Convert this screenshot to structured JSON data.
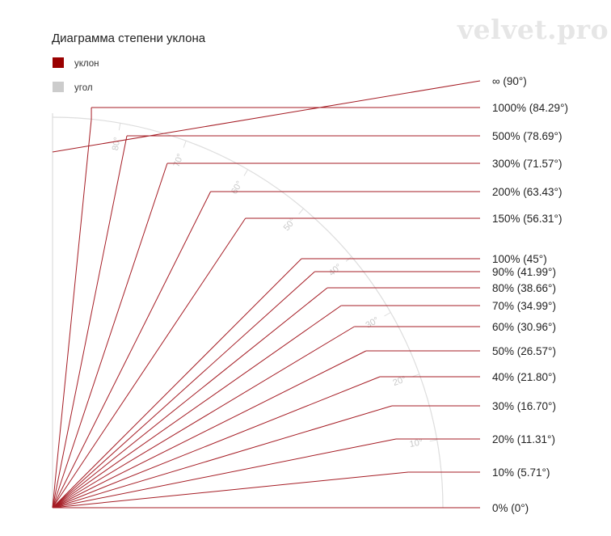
{
  "watermark": "velvet.pro",
  "title": "Диаграмма степени уклона",
  "legend": [
    {
      "label": "уклон",
      "color": "#9a0000"
    },
    {
      "label": "угол",
      "color": "#cccccc"
    }
  ],
  "colors": {
    "slope_line": "#a51c24",
    "arc": "#dddddd",
    "angle_text": "#c8c8c8"
  },
  "angle_ticks": [
    {
      "deg": 10,
      "label": "10°"
    },
    {
      "deg": 20,
      "label": "20°"
    },
    {
      "deg": 30,
      "label": "30°"
    },
    {
      "deg": 40,
      "label": "40°"
    },
    {
      "deg": 50,
      "label": "50°"
    },
    {
      "deg": 60,
      "label": "60°"
    },
    {
      "deg": 70,
      "label": "70°"
    },
    {
      "deg": 80,
      "label": "80°"
    }
  ],
  "slopes": [
    {
      "label": "∞ (90°)",
      "angle": 90
    },
    {
      "label": "1000% (84.29°)",
      "angle": 84.29
    },
    {
      "label": "500% (78.69°)",
      "angle": 78.69
    },
    {
      "label": "300% (71.57°)",
      "angle": 71.57
    },
    {
      "label": "200% (63.43°)",
      "angle": 63.43
    },
    {
      "label": "150% (56.31°)",
      "angle": 56.31
    },
    {
      "label": "100% (45°)",
      "angle": 45
    },
    {
      "label": "90% (41.99°)",
      "angle": 41.99
    },
    {
      "label": "80% (38.66°)",
      "angle": 38.66
    },
    {
      "label": "70% (34.99°)",
      "angle": 34.99
    },
    {
      "label": "60% (30.96°)",
      "angle": 30.96
    },
    {
      "label": "50% (26.57°)",
      "angle": 26.57
    },
    {
      "label": "40% (21.80°)",
      "angle": 21.8
    },
    {
      "label": "30% (16.70°)",
      "angle": 16.7
    },
    {
      "label": "20% (11.31°)",
      "angle": 11.31
    },
    {
      "label": "10% (5.71°)",
      "angle": 5.71
    },
    {
      "label": "0% (0°)",
      "angle": 0
    }
  ]
}
